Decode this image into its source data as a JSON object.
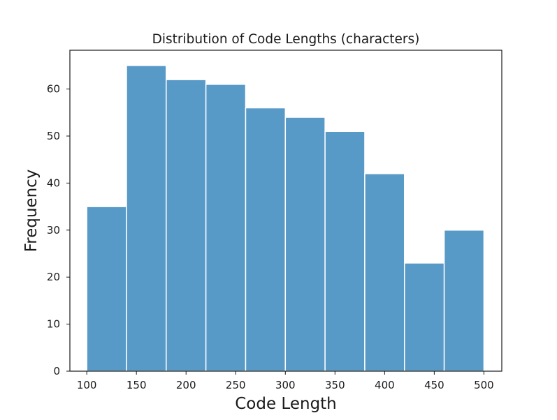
{
  "chart_data": {
    "type": "bar",
    "title": "Distribution of Code Lengths (characters)",
    "xlabel": "Code Length",
    "ylabel": "Frequency",
    "bin_edges": [
      100,
      140,
      180,
      220,
      260,
      300,
      340,
      380,
      420,
      460,
      500
    ],
    "values": [
      35,
      65,
      62,
      61,
      56,
      54,
      51,
      42,
      23,
      30
    ],
    "xlim": [
      83,
      518
    ],
    "ylim": [
      0,
      68.25
    ],
    "xticks": [
      100,
      150,
      200,
      250,
      300,
      350,
      400,
      450,
      500
    ],
    "yticks": [
      0,
      10,
      20,
      30,
      40,
      50,
      60
    ],
    "bar_color": "#5799c7",
    "bar_edge_color": "#ffffff",
    "grid": false
  }
}
